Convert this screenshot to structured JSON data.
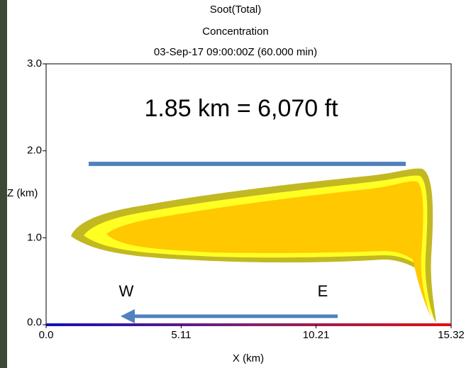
{
  "chart_data": {
    "type": "contour",
    "title": [
      "Soot(Total)",
      "Concentration",
      "03-Sep-17 09:00:00Z (60.000 min)"
    ],
    "xlabel": "X (km)",
    "ylabel": "Z (km)",
    "xlim": [
      0,
      15.32
    ],
    "ylim": [
      0,
      3
    ],
    "xticks": [
      {
        "value": 0,
        "label": "0.0"
      },
      5.11,
      10.21,
      15.32
    ],
    "yticks": [
      {
        "value": 0,
        "label": "0.0"
      },
      {
        "value": 1,
        "label": "1.0"
      },
      {
        "value": 2,
        "label": "2.0"
      },
      {
        "value": 3,
        "label": "3.0"
      }
    ],
    "hline": 1.85,
    "hline_color": "#4f81bd",
    "annotations": [
      "1.85 km = 6,070 ft",
      "W",
      "E"
    ]
  }
}
